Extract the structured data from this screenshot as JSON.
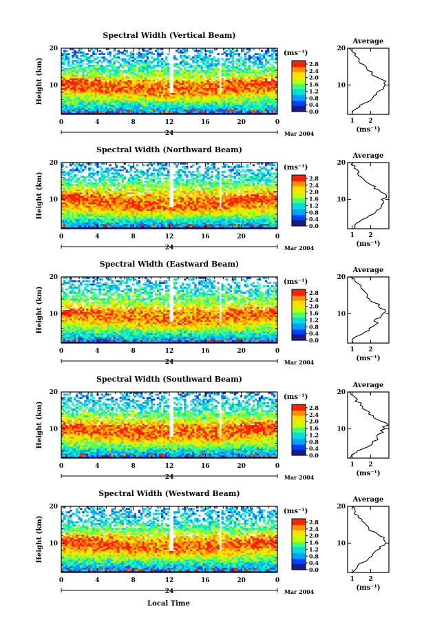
{
  "figure": {
    "date_label": "Mar 2004",
    "day_label": "24",
    "xlabel": "Local Time",
    "ylabel": "Height (km)",
    "colorbar_unit": "(ms⁻¹)",
    "profile_title": "Average",
    "profile_xlabel": "(ms⁻¹)"
  },
  "chart_data": [
    {
      "type": "heatmap",
      "title": "Spectral Width (Vertical Beam)",
      "x_ticks": [
        "0",
        "4",
        "8",
        "12",
        "16",
        "20",
        "0"
      ],
      "xlim": [
        0,
        24
      ],
      "y_ticks": [
        "10",
        "20"
      ],
      "ylim": [
        2,
        20
      ],
      "colorbar_ticks": [
        "0.0",
        "0.4",
        "0.8",
        "1.2",
        "1.6",
        "2.0",
        "2.4",
        "2.8"
      ],
      "colorbar_range": [
        0,
        3.0
      ],
      "colormap": [
        "#1a1a80",
        "#0040ff",
        "#00a0ff",
        "#00e0e0",
        "#40ff80",
        "#c0ff00",
        "#ffe000",
        "#ff9000",
        "#ff2000"
      ],
      "profile": {
        "title": "Average",
        "x_ticks": [
          "1",
          "2"
        ],
        "heights": [
          2,
          3,
          4,
          5,
          6,
          7,
          8,
          9,
          10,
          11,
          12,
          13,
          14,
          15,
          16,
          17,
          18,
          19,
          20
        ],
        "values": [
          0.9,
          1.1,
          1.4,
          1.7,
          2.0,
          2.2,
          2.4,
          2.6,
          2.7,
          2.8,
          2.5,
          2.1,
          1.9,
          1.7,
          1.4,
          1.3,
          1.2,
          1.0,
          0.9
        ]
      }
    },
    {
      "type": "heatmap",
      "title": "Spectral Width (Northward Beam)",
      "x_ticks": [
        "0",
        "4",
        "8",
        "12",
        "16",
        "20",
        "0"
      ],
      "xlim": [
        0,
        24
      ],
      "y_ticks": [
        "10",
        "20"
      ],
      "ylim": [
        2,
        20
      ],
      "colorbar_ticks": [
        "0.0",
        "0.4",
        "0.8",
        "1.2",
        "1.6",
        "2.0",
        "2.4",
        "2.8"
      ],
      "colorbar_range": [
        0,
        3.0
      ],
      "colormap": [
        "#1a1a80",
        "#0040ff",
        "#00a0ff",
        "#00e0e0",
        "#40ff80",
        "#c0ff00",
        "#ffe000",
        "#ff9000",
        "#ff2000"
      ],
      "profile": {
        "title": "Average",
        "x_ticks": [
          "1",
          "2"
        ],
        "heights": [
          2,
          3,
          4,
          5,
          6,
          7,
          8,
          9,
          10,
          11,
          12,
          13,
          14,
          15,
          16,
          17,
          18,
          19,
          20
        ],
        "values": [
          1.0,
          1.1,
          1.5,
          1.8,
          2.1,
          2.4,
          2.5,
          2.6,
          2.7,
          2.8,
          2.6,
          2.3,
          2.0,
          1.8,
          1.5,
          1.4,
          1.2,
          1.1,
          1.0
        ]
      }
    },
    {
      "type": "heatmap",
      "title": "Spectral Width (Eastward Beam)",
      "x_ticks": [
        "0",
        "4",
        "8",
        "12",
        "16",
        "20",
        "0"
      ],
      "xlim": [
        0,
        24
      ],
      "y_ticks": [
        "10",
        "20"
      ],
      "ylim": [
        2,
        20
      ],
      "colorbar_ticks": [
        "0.0",
        "0.4",
        "0.8",
        "1.2",
        "1.6",
        "2.0",
        "2.4",
        "2.8"
      ],
      "colorbar_range": [
        0,
        3.0
      ],
      "colormap": [
        "#1a1a80",
        "#0040ff",
        "#00a0ff",
        "#00e0e0",
        "#40ff80",
        "#c0ff00",
        "#ffe000",
        "#ff9000",
        "#ff2000"
      ],
      "profile": {
        "title": "Average",
        "x_ticks": [
          "1",
          "2"
        ],
        "heights": [
          2,
          3,
          4,
          5,
          6,
          7,
          8,
          9,
          10,
          11,
          12,
          13,
          14,
          15,
          16,
          17,
          18,
          19,
          20
        ],
        "values": [
          1.0,
          1.1,
          1.4,
          1.7,
          2.0,
          2.3,
          2.3,
          2.5,
          2.6,
          2.8,
          2.5,
          2.2,
          1.9,
          1.9,
          1.6,
          1.5,
          1.3,
          1.2,
          1.0
        ]
      }
    },
    {
      "type": "heatmap",
      "title": "Spectral Width (Southward Beam)",
      "x_ticks": [
        "0",
        "4",
        "8",
        "12",
        "16",
        "20",
        "0"
      ],
      "xlim": [
        0,
        24
      ],
      "y_ticks": [
        "10",
        "20"
      ],
      "ylim": [
        2,
        20
      ],
      "colorbar_ticks": [
        "0.0",
        "0.4",
        "0.8",
        "1.2",
        "1.6",
        "2.0",
        "2.4",
        "2.8"
      ],
      "colorbar_range": [
        0,
        3.0
      ],
      "colormap": [
        "#1a1a80",
        "#0040ff",
        "#00a0ff",
        "#00e0e0",
        "#40ff80",
        "#c0ff00",
        "#ffe000",
        "#ff9000",
        "#ff2000"
      ],
      "profile": {
        "title": "Average",
        "x_ticks": [
          "1",
          "2"
        ],
        "heights": [
          2,
          3,
          4,
          5,
          6,
          7,
          8,
          9,
          10,
          11,
          12,
          13,
          14,
          15,
          16,
          17,
          18,
          19,
          20
        ],
        "values": [
          0.9,
          1.1,
          1.4,
          1.8,
          2.1,
          2.3,
          2.4,
          2.6,
          2.7,
          2.9,
          2.6,
          2.2,
          2.0,
          1.7,
          1.5,
          1.4,
          1.2,
          1.0,
          0.9
        ]
      }
    },
    {
      "type": "heatmap",
      "title": "Spectral Width (Westward Beam)",
      "x_ticks": [
        "0",
        "4",
        "8",
        "12",
        "16",
        "20",
        "0"
      ],
      "xlim": [
        0,
        24
      ],
      "y_ticks": [
        "10",
        "20"
      ],
      "ylim": [
        2,
        20
      ],
      "colorbar_ticks": [
        "0.0",
        "0.4",
        "0.8",
        "1.2",
        "1.6",
        "2.0",
        "2.4",
        "2.8"
      ],
      "colorbar_range": [
        0,
        3.0
      ],
      "colormap": [
        "#1a1a80",
        "#0040ff",
        "#00a0ff",
        "#00e0e0",
        "#40ff80",
        "#c0ff00",
        "#ffe000",
        "#ff9000",
        "#ff2000"
      ],
      "profile": {
        "title": "Average",
        "x_ticks": [
          "1",
          "2"
        ],
        "heights": [
          2,
          3,
          4,
          5,
          6,
          7,
          8,
          9,
          10,
          11,
          12,
          13,
          14,
          15,
          16,
          17,
          18,
          19,
          20
        ],
        "values": [
          0.9,
          1.1,
          1.4,
          1.7,
          2.0,
          2.2,
          2.4,
          2.6,
          2.7,
          2.8,
          2.6,
          2.2,
          1.9,
          1.7,
          1.5,
          1.3,
          1.2,
          1.1,
          1.0
        ]
      }
    }
  ]
}
